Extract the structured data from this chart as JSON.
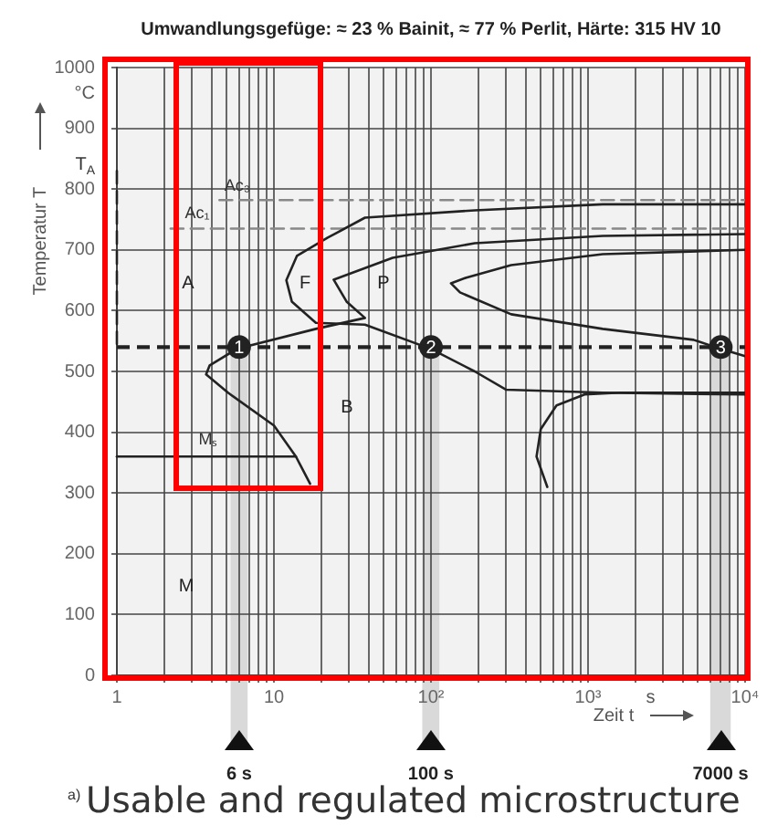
{
  "chart_data": {
    "type": "line",
    "title": "Umwandlungsgefüge: ≈ 23 % Bainit, ≈ 77 % Perlit, Härte: 315 HV 10",
    "xlabel": "Zeit t",
    "ylabel": "Temperatur T",
    "log": "x",
    "grid": true,
    "legend": false,
    "xlim": [
      1,
      10000
    ],
    "ylim": [
      0,
      1000
    ],
    "xticks": [
      {
        "value": 1,
        "label": "1"
      },
      {
        "value": 2,
        "label": null
      },
      {
        "value": 3,
        "label": null
      },
      {
        "value": 4,
        "label": null
      },
      {
        "value": 5,
        "label": null
      },
      {
        "value": 6,
        "label": null
      },
      {
        "value": 7,
        "label": null
      },
      {
        "value": 8,
        "label": null
      },
      {
        "value": 9,
        "label": null
      },
      {
        "value": 10,
        "label": "10"
      },
      {
        "value": 20,
        "label": null
      },
      {
        "value": 30,
        "label": null
      },
      {
        "value": 40,
        "label": null
      },
      {
        "value": 50,
        "label": null
      },
      {
        "value": 60,
        "label": null
      },
      {
        "value": 70,
        "label": null
      },
      {
        "value": 80,
        "label": null
      },
      {
        "value": 90,
        "label": null
      },
      {
        "value": 100,
        "label": "10²"
      },
      {
        "value": 200,
        "label": null
      },
      {
        "value": 300,
        "label": null
      },
      {
        "value": 400,
        "label": null
      },
      {
        "value": 500,
        "label": null
      },
      {
        "value": 600,
        "label": null
      },
      {
        "value": 700,
        "label": null
      },
      {
        "value": 800,
        "label": null
      },
      {
        "value": 900,
        "label": null
      },
      {
        "value": 1000,
        "label": "10³"
      },
      {
        "value": 2000,
        "label": null
      },
      {
        "value": 3000,
        "label": null
      },
      {
        "value": 4000,
        "label": null
      },
      {
        "value": 5000,
        "label": null
      },
      {
        "value": 6000,
        "label": null
      },
      {
        "value": 7000,
        "label": null
      },
      {
        "value": 8000,
        "label": null
      },
      {
        "value": 9000,
        "label": null
      },
      {
        "value": 10000,
        "label": "10⁴"
      }
    ],
    "yticks": [
      0,
      100,
      200,
      300,
      400,
      500,
      600,
      700,
      800,
      900,
      1000
    ],
    "series": [
      {
        "color": "#222222",
        "line_style": "solid",
        "marker": "none",
        "x": [
          10000,
          1240,
          190,
          38,
          22,
          14,
          12,
          13,
          18.5,
          38,
          100,
          190,
          300,
          1240,
          10000
        ],
        "values": [
          775,
          775,
          765,
          753,
          720,
          690,
          650,
          615,
          580,
          577,
          537,
          500,
          470,
          465,
          462
        ]
      },
      {
        "color": "#222222",
        "line_style": "solid",
        "marker": "none",
        "x": [
          10000,
          1240,
          190,
          57,
          24,
          29,
          38,
          18.5,
          5.8,
          3.9,
          3.7,
          5.1,
          10,
          13.8,
          17
        ],
        "values": [
          726,
          723,
          711,
          687,
          651,
          615,
          588,
          570,
          537,
          510,
          495,
          465,
          411,
          360,
          315
        ]
      },
      {
        "color": "#222222",
        "line_style": "solid",
        "marker": "none",
        "x": [
          10000,
          1240,
          324,
          166,
          134,
          153,
          324,
          1240,
          4700,
          7000,
          10000
        ],
        "values": [
          700,
          693,
          675,
          654,
          645,
          630,
          594,
          570,
          552,
          537,
          525
        ]
      },
      {
        "color": "#222222",
        "line_style": "solid",
        "marker": "none",
        "x": [
          550,
          470,
          500,
          630,
          950,
          1600,
          10000
        ],
        "values": [
          310,
          360,
          405,
          444,
          462,
          465,
          465
        ]
      },
      {
        "color": "#222222",
        "line_style": "solid",
        "marker": "none",
        "x": [
          1,
          13.8
        ],
        "values": [
          360,
          360
        ]
      },
      {
        "color": "#888888",
        "line_style": "dashed",
        "marker": "none",
        "x": [
          4.5,
          10000
        ],
        "values": [
          782,
          782
        ]
      },
      {
        "color": "#888888",
        "line_style": "dashed",
        "marker": "none",
        "x": [
          2.2,
          10000
        ],
        "values": [
          735,
          735
        ]
      },
      {
        "color": "#222222",
        "line_style": "dashed",
        "marker": "none",
        "x": [
          1,
          1
        ],
        "values": [
          830,
          545
        ]
      },
      {
        "type": "scatter",
        "color": "#222222",
        "marker": "circle",
        "x": [
          6,
          100,
          7000
        ],
        "values": [
          540,
          540,
          540
        ]
      }
    ],
    "ref_lines": [
      {
        "axis": "y",
        "value": 540,
        "line_style": "dashed",
        "color": "#222222"
      }
    ],
    "bands": [
      {
        "axis": "x",
        "from": 5.3,
        "to": 6.8,
        "label": "6 s",
        "color": "#d9d9d9"
      },
      {
        "axis": "x",
        "from": 88,
        "to": 113,
        "label": "100 s",
        "color": "#d9d9d9"
      },
      {
        "axis": "x",
        "from": 6000,
        "to": 8100,
        "label": "7000 s",
        "color": "#d9d9d9"
      }
    ],
    "annotations": [
      {
        "text": "1",
        "x": 6,
        "y": 540
      },
      {
        "text": "2",
        "x": 100,
        "y": 540
      },
      {
        "text": "3",
        "x": 7000,
        "y": 540
      },
      "A",
      "F",
      "P",
      "B",
      "M",
      "Ac₃",
      "Ac₁",
      "Mₛ",
      "°C",
      "s",
      "T$_{A}$",
      "a)",
      "Usable and regulated microstructure"
    ]
  }
}
